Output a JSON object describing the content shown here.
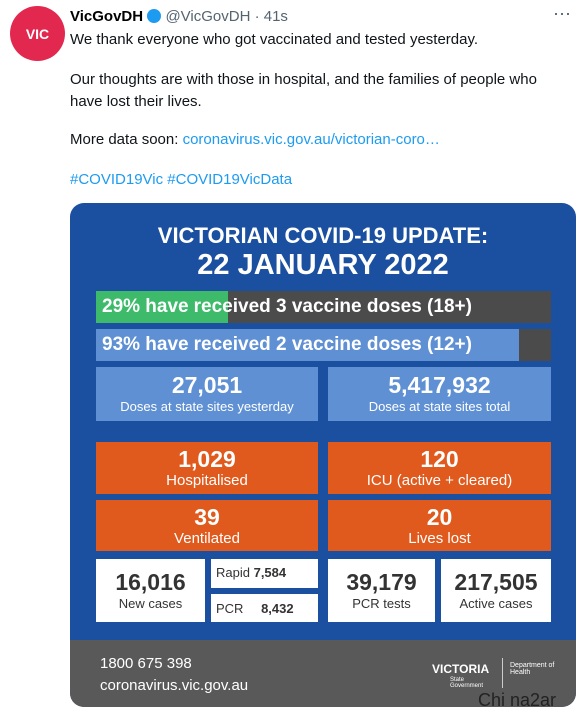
{
  "tweet": {
    "avatar_text": "VIC",
    "name": "VicGovDH",
    "handle": "@VicGovDH",
    "time": "· 41s",
    "more": "⋯",
    "text": [
      "We thank everyone who got vaccinated and tested yesterday.",
      "Our thoughts are with those in hospital, and the families of people who have lost their lives."
    ],
    "more_data": "More data soon:",
    "link": "coronavirus.vic.gov.au/victorian-coro…",
    "hashtags": "#COVID19Vic #COVID19VicData"
  },
  "image": {
    "title": "VICTORIAN COVID-19 UPDATE:",
    "date": "22 JANUARY 2022",
    "bars": [
      {
        "value": 29,
        "label": "29% have",
        "rest": "received 3 vaccine doses (18+)"
      },
      {
        "value": 93,
        "label": "93% have",
        "rest": "received 2 vaccine doses (12+)"
      }
    ],
    "doses": [
      {
        "number": "27,051",
        "caption": "Doses at state sites yesterday"
      },
      {
        "number": "5,417,932",
        "caption": "Doses at state sites total"
      }
    ],
    "hospital": [
      {
        "number": "1,029",
        "caption": "Hospitalised"
      },
      {
        "number": "120",
        "caption": "ICU (active + cleared)"
      },
      {
        "number": "39",
        "caption": "Ventilated"
      },
      {
        "number": "20",
        "caption": "Lives lost"
      }
    ],
    "cases": {
      "number": "16,016",
      "caption": "New cases",
      "rapid_label": "Rapid",
      "rapid": "7,584",
      "pcr_label": "PCR",
      "pcr": "8,432"
    },
    "tests": [
      {
        "number": "39,179",
        "caption": "PCR tests"
      },
      {
        "number": "217,505",
        "caption": "Active cases"
      }
    ],
    "footer": {
      "phone": "1800 675 398",
      "site": "coronavirus.vic.gov.au",
      "logo": "VICTORIA",
      "logo_sub": "State Government",
      "dept": "Department of Health"
    }
  },
  "watermark": "Chi na2ar"
}
